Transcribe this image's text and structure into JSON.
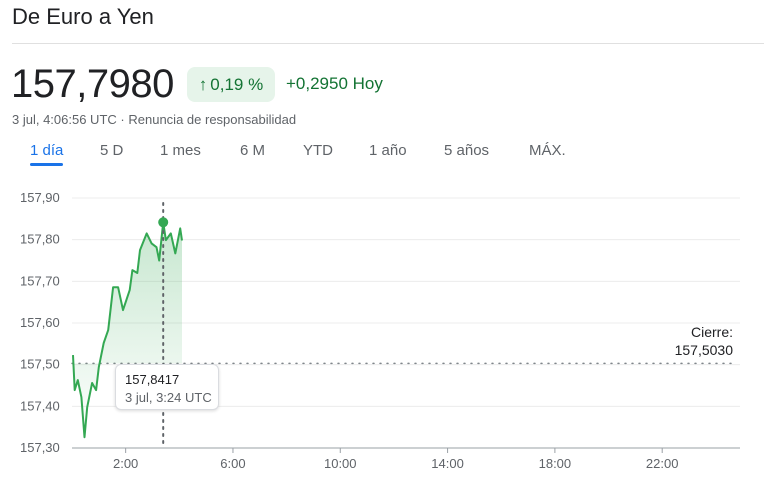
{
  "header": {
    "title": "De Euro a Yen"
  },
  "quote": {
    "price": "157,7980",
    "change_pct": "0,19 %",
    "change_icon": "arrow-up-icon",
    "change_abs": "+0,2950 Hoy",
    "timestamp": "3 jul, 4:06:56 UTC",
    "separator": "·",
    "disclaimer": "Renuncia de responsabilidad"
  },
  "tabs": [
    {
      "label": "1 día",
      "active": true
    },
    {
      "label": "5 D"
    },
    {
      "label": "1 mes"
    },
    {
      "label": "6 M"
    },
    {
      "label": "YTD"
    },
    {
      "label": "1 año"
    },
    {
      "label": "5 años"
    },
    {
      "label": "MÁX."
    }
  ],
  "colors": {
    "up": "#137333",
    "line": "#34a853",
    "accent": "#1a73e8"
  },
  "tooltip": {
    "value": "157,8417",
    "time": "3 jul, 3:24 UTC"
  },
  "close": {
    "label": "Cierre:",
    "value": "157,5030"
  },
  "chart_data": {
    "type": "line",
    "ylim": [
      157.3,
      157.92
    ],
    "yticks": [
      "157,90",
      "157,80",
      "157,70",
      "157,60",
      "157,50",
      "157,40",
      "157,30"
    ],
    "ytick_values": [
      157.9,
      157.8,
      157.7,
      157.6,
      157.5,
      157.4,
      157.3
    ],
    "xlim_hours": [
      0,
      24
    ],
    "xticks": [
      "2:00",
      "6:00",
      "10:00",
      "14:00",
      "18:00",
      "22:00"
    ],
    "xtick_hours": [
      2,
      6,
      10,
      14,
      18,
      22
    ],
    "previous_close": 157.503,
    "highlight": {
      "time": "3:24",
      "value": 157.8417
    },
    "series": [
      {
        "x": [
          "0:02",
          "0:06",
          "0:13",
          "0:21",
          "0:28",
          "0:34",
          "0:45",
          "0:54",
          "1:00",
          "1:11",
          "1:21",
          "1:32",
          "1:43",
          "1:54",
          "2:09",
          "2:15",
          "2:26",
          "2:32",
          "2:41",
          "2:47",
          "2:58",
          "3:09",
          "3:15",
          "3:24",
          "3:30",
          "3:41",
          "3:51",
          "4:02",
          "4:06"
        ],
        "values": [
          157.523,
          157.439,
          157.463,
          157.422,
          157.326,
          157.398,
          157.456,
          157.439,
          157.494,
          157.552,
          157.583,
          157.686,
          157.686,
          157.631,
          157.679,
          157.727,
          157.72,
          157.775,
          157.799,
          157.815,
          157.791,
          157.782,
          157.75,
          157.8417,
          157.799,
          157.815,
          157.767,
          157.827,
          157.798
        ]
      }
    ]
  }
}
